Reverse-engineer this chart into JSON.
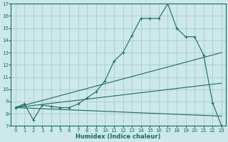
{
  "xlabel": "Humidex (Indice chaleur)",
  "bg_color": "#cce8e8",
  "line_color": "#1a6b60",
  "grid_color": "#aacccc",
  "xlim": [
    -0.5,
    23.5
  ],
  "ylim": [
    7,
    17
  ],
  "xticks": [
    0,
    1,
    2,
    3,
    4,
    5,
    6,
    7,
    8,
    9,
    10,
    11,
    12,
    13,
    14,
    15,
    16,
    17,
    18,
    19,
    20,
    21,
    22,
    23
  ],
  "yticks": [
    7,
    8,
    9,
    10,
    11,
    12,
    13,
    14,
    15,
    16,
    17
  ],
  "lines": [
    {
      "x": [
        0,
        1,
        2,
        3,
        4,
        5,
        6,
        7,
        8,
        9,
        10,
        11,
        12,
        13,
        14,
        15,
        16,
        17,
        18,
        19,
        20,
        21,
        22,
        23
      ],
      "y": [
        8.5,
        8.8,
        7.5,
        8.7,
        8.6,
        8.5,
        8.5,
        8.8,
        9.3,
        9.8,
        10.7,
        12.3,
        13.0,
        14.4,
        15.8,
        15.8,
        15.8,
        17.0,
        15.0,
        14.3,
        14.3,
        12.8,
        8.9,
        7.0
      ],
      "has_marker": true
    },
    {
      "x": [
        0,
        23
      ],
      "y": [
        8.5,
        13.0
      ],
      "has_marker": false
    },
    {
      "x": [
        0,
        23
      ],
      "y": [
        8.5,
        10.5
      ],
      "has_marker": false
    },
    {
      "x": [
        0,
        23
      ],
      "y": [
        8.5,
        7.8
      ],
      "has_marker": false
    }
  ],
  "tick_fontsize": 5.0,
  "xlabel_fontsize": 6.0
}
